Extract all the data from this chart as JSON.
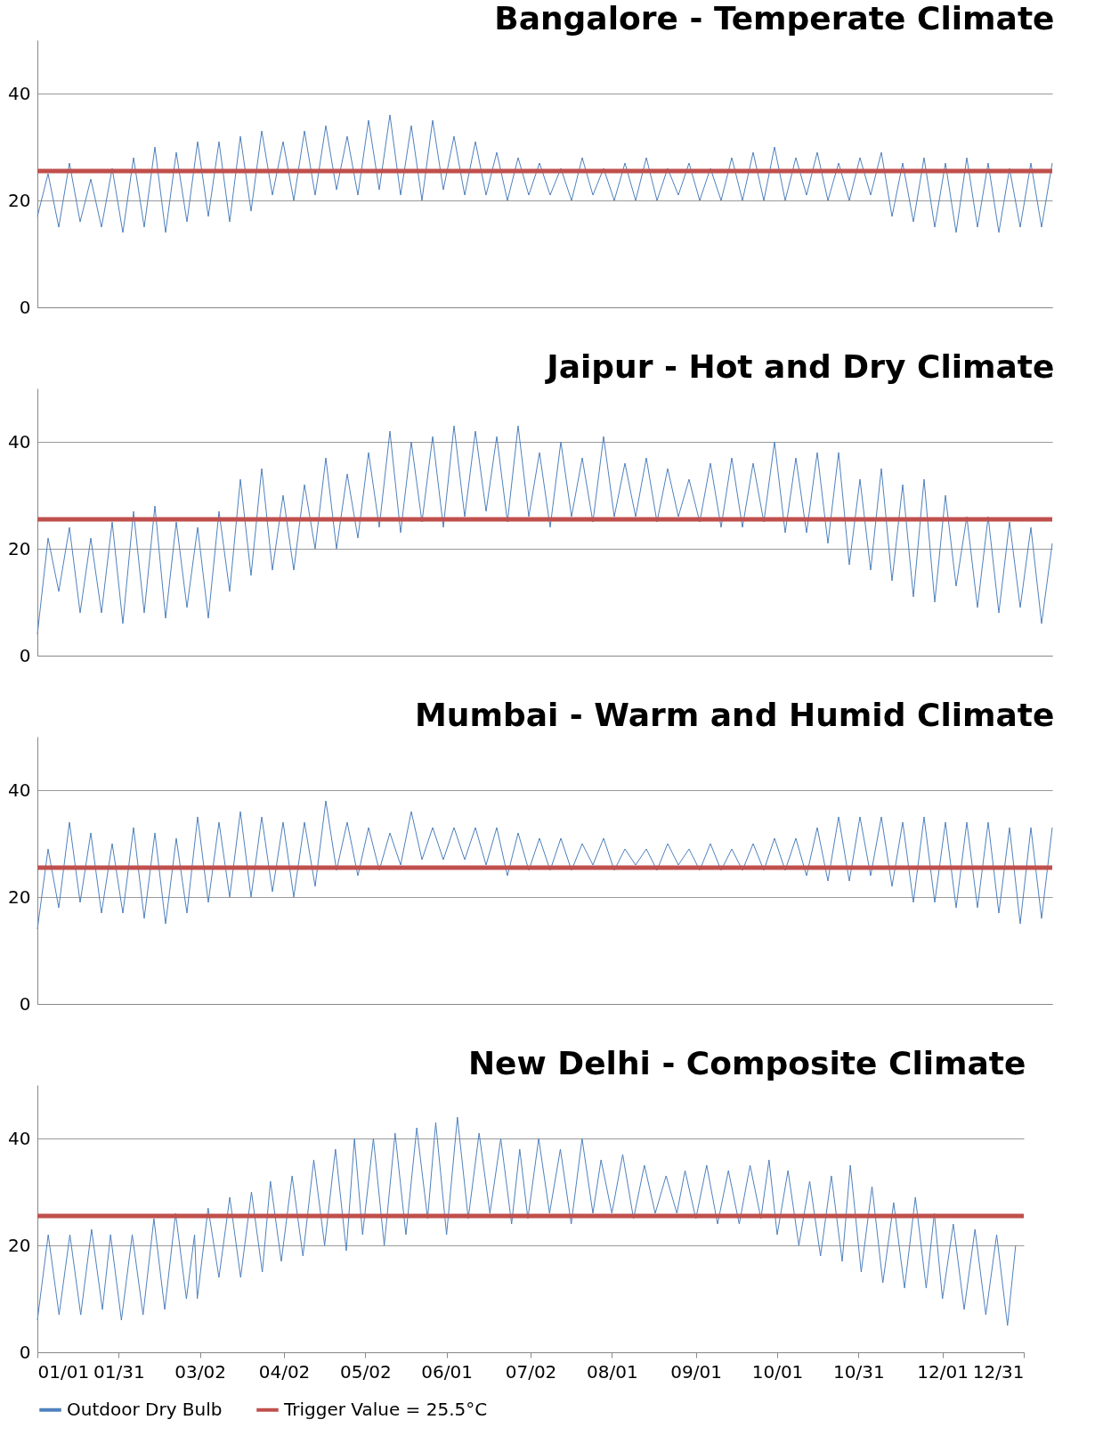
{
  "chart_data": [
    {
      "type": "line",
      "title": "Bangalore - Temperate Climate",
      "categories": [
        null,
        null,
        null,
        null,
        null,
        null,
        null,
        null,
        null,
        null,
        null,
        null,
        null,
        null,
        null,
        null,
        null,
        null,
        null,
        null,
        null,
        null,
        null,
        null,
        null,
        null,
        null,
        null,
        null,
        null,
        null,
        null,
        null,
        null,
        null,
        null,
        null,
        null,
        null,
        null,
        null,
        null,
        null,
        null,
        null,
        null,
        null,
        null,
        null,
        null,
        null,
        null,
        null,
        null,
        null,
        null,
        null,
        null,
        null,
        null,
        null,
        null,
        null,
        null,
        null,
        null,
        null,
        null,
        null,
        null,
        null,
        null,
        null,
        null,
        null,
        null,
        null,
        null,
        null,
        null,
        null,
        null,
        null,
        null,
        null,
        null,
        null,
        null,
        null,
        null,
        null,
        null,
        null,
        null,
        null,
        null
      ],
      "ylim": [
        0,
        50
      ],
      "yticks": [
        0,
        20,
        40
      ],
      "grid": "y",
      "tick_labels": "y",
      "series": [
        {
          "color": "#4f81bd",
          "values": [
            17,
            25,
            15,
            27,
            16,
            24,
            15,
            26,
            14,
            28,
            15,
            30,
            14,
            29,
            16,
            31,
            17,
            31,
            16,
            32,
            18,
            33,
            21,
            31,
            20,
            33,
            21,
            34,
            22,
            32,
            21,
            35,
            22,
            36,
            21,
            34,
            20,
            35,
            22,
            32,
            21,
            31,
            21,
            29,
            20,
            28,
            21,
            27,
            21,
            26,
            20,
            28,
            21,
            26,
            20,
            27,
            20,
            28,
            20,
            26,
            21,
            27,
            20,
            26,
            20,
            28,
            20,
            29,
            20,
            30,
            20,
            28,
            21,
            29,
            20,
            27,
            20,
            28,
            21,
            29,
            17,
            27,
            16,
            28,
            15,
            27,
            14,
            28,
            15,
            27,
            14,
            26,
            15,
            27,
            15,
            27
          ]
        }
      ],
      "ref_lines": [
        {
          "axis": "y",
          "value": 25.5,
          "color": "#c0504d"
        }
      ]
    },
    {
      "type": "line",
      "title": "Jaipur - Hot and Dry Climate",
      "categories": [
        null,
        null,
        null,
        null,
        null,
        null,
        null,
        null,
        null,
        null,
        null,
        null,
        null,
        null,
        null,
        null,
        null,
        null,
        null,
        null,
        null,
        null,
        null,
        null,
        null,
        null,
        null,
        null,
        null,
        null,
        null,
        null,
        null,
        null,
        null,
        null,
        null,
        null,
        null,
        null,
        null,
        null,
        null,
        null,
        null,
        null,
        null,
        null,
        null,
        null,
        null,
        null,
        null,
        null,
        null,
        null,
        null,
        null,
        null,
        null,
        null,
        null,
        null,
        null,
        null,
        null,
        null,
        null,
        null,
        null,
        null,
        null,
        null,
        null,
        null,
        null,
        null,
        null,
        null,
        null,
        null,
        null,
        null,
        null,
        null,
        null,
        null,
        null,
        null,
        null,
        null,
        null,
        null,
        null,
        null,
        null
      ],
      "ylim": [
        0,
        50
      ],
      "yticks": [
        0,
        20,
        40
      ],
      "grid": "y",
      "tick_labels": "y",
      "series": [
        {
          "color": "#4f81bd",
          "values": [
            4,
            22,
            12,
            24,
            8,
            22,
            8,
            25,
            6,
            27,
            8,
            28,
            7,
            25,
            9,
            24,
            7,
            27,
            12,
            33,
            15,
            35,
            16,
            30,
            16,
            32,
            20,
            37,
            20,
            34,
            22,
            38,
            24,
            42,
            23,
            40,
            25,
            41,
            24,
            43,
            26,
            42,
            27,
            41,
            25,
            43,
            26,
            38,
            24,
            40,
            26,
            37,
            25,
            41,
            26,
            36,
            26,
            37,
            25,
            35,
            26,
            33,
            25,
            36,
            24,
            37,
            24,
            36,
            25,
            40,
            23,
            37,
            23,
            38,
            21,
            38,
            17,
            33,
            16,
            35,
            14,
            32,
            11,
            33,
            10,
            30,
            13,
            26,
            9,
            26,
            8,
            25,
            9,
            24,
            6,
            21
          ]
        }
      ],
      "ref_lines": [
        {
          "axis": "y",
          "value": 25.5,
          "color": "#c0504d"
        }
      ]
    },
    {
      "type": "line",
      "title": "Mumbai - Warm and Humid Climate",
      "categories": [
        null,
        null,
        null,
        null,
        null,
        null,
        null,
        null,
        null,
        null,
        null,
        null,
        null,
        null,
        null,
        null,
        null,
        null,
        null,
        null,
        null,
        null,
        null,
        null,
        null,
        null,
        null,
        null,
        null,
        null,
        null,
        null,
        null,
        null,
        null,
        null,
        null,
        null,
        null,
        null,
        null,
        null,
        null,
        null,
        null,
        null,
        null,
        null,
        null,
        null,
        null,
        null,
        null,
        null,
        null,
        null,
        null,
        null,
        null,
        null,
        null,
        null,
        null,
        null,
        null,
        null,
        null,
        null,
        null,
        null,
        null,
        null,
        null,
        null,
        null,
        null,
        null,
        null,
        null,
        null,
        null,
        null,
        null,
        null,
        null,
        null,
        null,
        null,
        null,
        null,
        null,
        null,
        null,
        null,
        null,
        null
      ],
      "ylim": [
        0,
        50
      ],
      "yticks": [
        0,
        20,
        40
      ],
      "grid": "y",
      "tick_labels": "y",
      "series": [
        {
          "color": "#4f81bd",
          "values": [
            14,
            29,
            18,
            34,
            19,
            32,
            17,
            30,
            17,
            33,
            16,
            32,
            15,
            31,
            17,
            35,
            19,
            34,
            20,
            36,
            20,
            35,
            21,
            34,
            20,
            34,
            22,
            38,
            25,
            34,
            24,
            33,
            25,
            32,
            26,
            36,
            27,
            33,
            27,
            33,
            27,
            33,
            26,
            33,
            24,
            32,
            25,
            31,
            25,
            31,
            25,
            30,
            26,
            31,
            25,
            29,
            26,
            29,
            25,
            30,
            26,
            29,
            25,
            30,
            25,
            29,
            25,
            30,
            25,
            31,
            25,
            31,
            24,
            33,
            23,
            35,
            23,
            35,
            24,
            35,
            22,
            34,
            19,
            35,
            19,
            34,
            18,
            34,
            18,
            34,
            17,
            33,
            15,
            33,
            16,
            33
          ]
        }
      ],
      "ref_lines": [
        {
          "axis": "y",
          "value": 25.5,
          "color": "#c0504d"
        }
      ]
    },
    {
      "type": "line",
      "title": "New Delhi - Composite Climate",
      "x": [
        "--01-01",
        "--01-05",
        "--01-09",
        "--01-13",
        "--01-17",
        "--01-21",
        "--01-25",
        "--01-28",
        "--02-01",
        "--02-05",
        "--02-09",
        "--02-13",
        "--02-17",
        "--02-21",
        "--02-25",
        "--02-28",
        "--03-01",
        "--03-05",
        "--03-09",
        "--03-13",
        "--03-17",
        "--03-21",
        "--03-25",
        "--03-28",
        "--04-01",
        "--04-05",
        "--04-09",
        "--04-13",
        "--04-17",
        "--04-21",
        "--04-25",
        "--04-28",
        "--05-01",
        "--05-05",
        "--05-09",
        "--05-13",
        "--05-17",
        "--05-21",
        "--05-25",
        "--05-28",
        "--06-01",
        "--06-05",
        "--06-09",
        "--06-13",
        "--06-17",
        "--06-21",
        "--06-25",
        "--06-28",
        "--07-01",
        "--07-05",
        "--07-09",
        "--07-13",
        "--07-17",
        "--07-21",
        "--07-25",
        "--07-28",
        "--08-01",
        "--08-05",
        "--08-09",
        "--08-13",
        "--08-17",
        "--08-21",
        "--08-25",
        "--08-28",
        "--09-01",
        "--09-05",
        "--09-09",
        "--09-13",
        "--09-17",
        "--09-21",
        "--09-25",
        "--09-28",
        "--10-01",
        "--10-05",
        "--10-09",
        "--10-13",
        "--10-17",
        "--10-21",
        "--10-25",
        "--10-28",
        "--11-01",
        "--11-05",
        "--11-09",
        "--11-13",
        "--11-17",
        "--11-21",
        "--11-25",
        "--11-28",
        "--12-01",
        "--12-05",
        "--12-09",
        "--12-13",
        "--12-17",
        "--12-21",
        "--12-25",
        "--12-28"
      ],
      "xlim": [
        "--01-01",
        "--12-31"
      ],
      "ylim": [
        0,
        50
      ],
      "yticks": [
        0,
        20,
        40
      ],
      "grid": "y",
      "legend": "bottom",
      "xticks": [
        {
          "value": "--01-01",
          "label": "01/01"
        },
        {
          "value": "--01-31",
          "label": "01/31"
        },
        {
          "value": "--03-02",
          "label": "03/02"
        },
        {
          "value": "--04-02",
          "label": "04/02"
        },
        {
          "value": "--05-02",
          "label": "05/02"
        },
        {
          "value": "--06-01",
          "label": "06/01"
        },
        {
          "value": "--07-02",
          "label": "07/02"
        },
        {
          "value": "--08-01",
          "label": "08/01"
        },
        {
          "value": "--09-01",
          "label": "09/01"
        },
        {
          "value": "--10-01",
          "label": "10/01"
        },
        {
          "value": "--10-31",
          "label": "10/31"
        },
        {
          "value": "--12-01",
          "label": "12/01"
        },
        {
          "value": "--12-31",
          "label": "12/31"
        }
      ],
      "series": [
        {
          "name": "Outdoor Dry Bulb",
          "color": "#4f81bd",
          "values": [
            6,
            22,
            7,
            22,
            7,
            23,
            8,
            22,
            6,
            22,
            7,
            25,
            8,
            26,
            10,
            22,
            10,
            27,
            14,
            29,
            14,
            30,
            15,
            32,
            17,
            33,
            18,
            36,
            20,
            38,
            19,
            40,
            22,
            40,
            20,
            41,
            22,
            42,
            25,
            43,
            22,
            44,
            25,
            41,
            26,
            40,
            24,
            38,
            25,
            40,
            26,
            38,
            24,
            40,
            26,
            36,
            26,
            37,
            25,
            35,
            26,
            33,
            26,
            34,
            25,
            35,
            24,
            34,
            24,
            35,
            25,
            36,
            22,
            34,
            20,
            32,
            18,
            33,
            17,
            35,
            15,
            31,
            13,
            28,
            12,
            29,
            12,
            26,
            10,
            24,
            8,
            23,
            7,
            22,
            5,
            20
          ]
        },
        {
          "name": "Trigger Value = 25.5°C",
          "color": "#c0504d",
          "x": [
            "--01-01",
            "--12-31"
          ],
          "values": [
            25.5,
            25.5
          ]
        }
      ]
    }
  ]
}
